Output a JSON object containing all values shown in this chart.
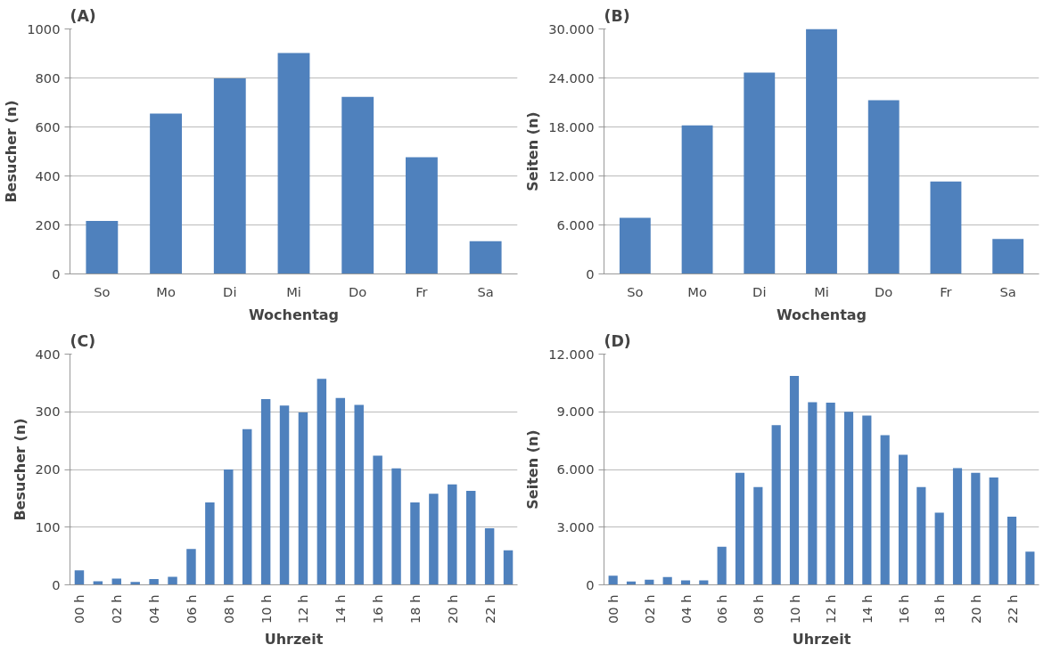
{
  "chart_data": [
    {
      "type": "bar",
      "title": "(A)",
      "xlabel": "Wochentag",
      "ylabel": "Besucher (n)",
      "categories": [
        "So",
        "Mo",
        "Di",
        "Mi",
        "Do",
        "Fr",
        "Sa"
      ],
      "values": [
        216,
        655,
        798,
        902,
        723,
        476,
        134
      ],
      "color": "#4f81bd",
      "ylim": [
        0,
        1000
      ],
      "yticks": [
        0,
        200,
        400,
        600,
        800,
        1000
      ],
      "grid": "y"
    },
    {
      "type": "bar",
      "title": "(B)",
      "xlabel": "Wochentag",
      "ylabel": "Seiten (n)",
      "categories": [
        "So",
        "Mo",
        "Di",
        "Mi",
        "Do",
        "Fr",
        "Sa"
      ],
      "values": [
        6880,
        18200,
        24650,
        30000,
        21270,
        11320,
        4290
      ],
      "color": "#4f81bd",
      "ylim": [
        0,
        30000
      ],
      "yticks": [
        0,
        {
          "value": 6000,
          "label": "6.000"
        },
        {
          "value": 12000,
          "label": "12.000"
        },
        {
          "value": 18000,
          "label": "18.000"
        },
        {
          "value": 24000,
          "label": "24.000"
        },
        {
          "value": 30000,
          "label": "30.000"
        }
      ],
      "grid": "y"
    },
    {
      "type": "bar",
      "title": "(C)",
      "xlabel": "Uhrzeit",
      "ylabel": "Besucher (n)",
      "categories": [
        "00 h",
        null,
        "02 h",
        null,
        "04 h",
        null,
        "06 h",
        null,
        "08 h",
        null,
        "10 h",
        null,
        "12 h",
        null,
        "14 h",
        null,
        "16 h",
        null,
        "18 h",
        null,
        "20 h",
        null,
        "22 h",
        null
      ],
      "values": [
        25,
        6,
        11,
        5,
        10,
        14,
        62,
        143,
        200,
        270,
        322,
        311,
        299,
        357,
        324,
        312,
        224,
        202,
        143,
        158,
        174,
        163,
        98,
        60
      ],
      "color": "#4f81bd",
      "ylim": [
        0,
        400
      ],
      "yticks": [
        0,
        100,
        200,
        300,
        400
      ],
      "grid": "y"
    },
    {
      "type": "bar",
      "title": "(D)",
      "xlabel": "Uhrzeit",
      "ylabel": "Seiten (n)",
      "categories": [
        "00 h",
        null,
        "02 h",
        null,
        "04 h",
        null,
        "06 h",
        null,
        "08 h",
        null,
        "10 h",
        null,
        "12 h",
        null,
        "14 h",
        null,
        "16 h",
        null,
        "18 h",
        null,
        "20 h",
        null,
        "22 h",
        null
      ],
      "values": [
        470,
        170,
        270,
        400,
        230,
        230,
        1980,
        5830,
        5080,
        8300,
        10870,
        9500,
        9470,
        9000,
        8800,
        7780,
        6770,
        5080,
        3750,
        6070,
        5830,
        5580,
        3550,
        1730
      ],
      "color": "#4f81bd",
      "ylim": [
        0,
        12000
      ],
      "yticks": [
        0,
        {
          "value": 3000,
          "label": "3.000"
        },
        {
          "value": 6000,
          "label": "6.000"
        },
        {
          "value": 9000,
          "label": "9.000"
        },
        {
          "value": 12000,
          "label": "12.000"
        }
      ],
      "grid": "y"
    }
  ]
}
